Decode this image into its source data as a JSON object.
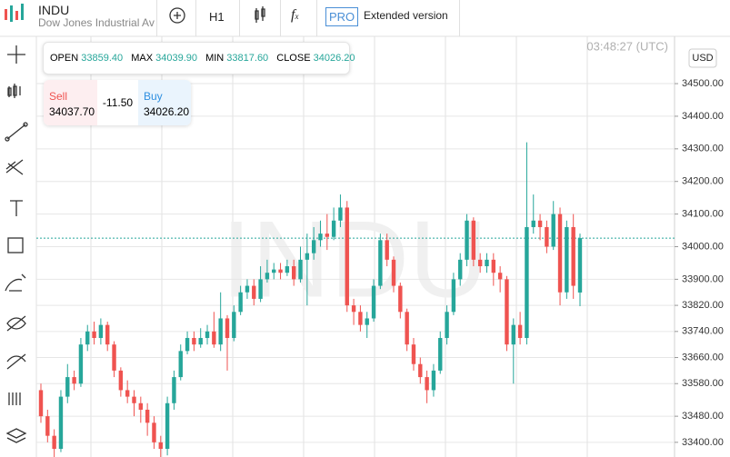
{
  "header": {
    "symbol": "INDU",
    "name": "Dow Jones Industrial Ave",
    "interval": "H1",
    "pro": "PRO",
    "extended": "Extended version"
  },
  "ohlc": {
    "open_label": "OPEN",
    "open": "33859.40",
    "max_label": "MAX",
    "max": "34039.90",
    "min_label": "MIN",
    "min": "33817.60",
    "close_label": "CLOSE",
    "close": "34026.20"
  },
  "trade": {
    "sell_label": "Sell",
    "sell": "34037.70",
    "spread": "-11.50",
    "buy_label": "Buy",
    "buy": "34026.20"
  },
  "time": "03:48:27 (UTC)",
  "currency": "USD",
  "watermark": "INDU",
  "chart_data": {
    "type": "candlestick",
    "up_color": "#26a69a",
    "down_color": "#ef5350",
    "last_price": 34026.2,
    "last_price_color": "#26a69a",
    "grid": true,
    "ylim": [
      33355,
      34645
    ],
    "yticks": [
      {
        "value": 33400,
        "label": "33400.00"
      },
      {
        "value": 33480,
        "label": "33480.00"
      },
      {
        "value": 33580,
        "label": "33580.00"
      },
      {
        "value": 33660,
        "label": "33660.00"
      },
      {
        "value": 33740,
        "label": "33740.00"
      },
      {
        "value": 33820,
        "label": "33820.00"
      },
      {
        "value": 33900,
        "label": "33900.00"
      },
      {
        "value": 34000,
        "label": "34000.00"
      },
      {
        "value": 34100,
        "label": "34100.00"
      },
      {
        "value": 34200,
        "label": "34200.00"
      },
      {
        "value": 34300,
        "label": "34300.00"
      },
      {
        "value": 34400,
        "label": "34400.00"
      },
      {
        "value": 34500,
        "label": "34500.00"
      }
    ],
    "open": [
      33560,
      33480,
      33420,
      33380,
      33540,
      33600,
      33580,
      33700,
      33740,
      33720,
      33760,
      33700,
      33620,
      33560,
      33540,
      33520,
      33500,
      33460,
      33400,
      33380,
      33520,
      33600,
      33680,
      33720,
      33700,
      33720,
      33740,
      33700,
      33780,
      33720,
      33800,
      33860,
      33880,
      33840,
      33900,
      33920,
      33930,
      33920,
      33940,
      33900,
      33960,
      33980,
      34020,
      34040,
      34030,
      34080,
      34120,
      33820,
      33800,
      33760,
      33780,
      33880,
      34020,
      33960,
      33880,
      33800,
      33700,
      33640,
      33600,
      33560,
      33620,
      33720,
      33800,
      33900,
      33960,
      34080,
      33960,
      33940,
      33960,
      33920,
      33900,
      33700,
      33760,
      33720,
      34060,
      34080,
      34060,
      34000,
      34100,
      33860,
      34060,
      33859.4
    ],
    "high": [
      33580,
      33500,
      33440,
      33560,
      33640,
      33620,
      33720,
      33760,
      33770,
      33780,
      33770,
      33710,
      33630,
      33590,
      33560,
      33540,
      33520,
      33480,
      33420,
      33540,
      33620,
      33700,
      33740,
      33740,
      33750,
      33760,
      33800,
      33860,
      33790,
      33820,
      33880,
      33900,
      33900,
      33940,
      33960,
      33950,
      33950,
      33960,
      33960,
      34000,
      34040,
      34060,
      34080,
      34100,
      34120,
      34160,
      34140,
      33840,
      33820,
      33800,
      33900,
      34040,
      34040,
      33970,
      33890,
      33810,
      33720,
      33660,
      33620,
      33640,
      33740,
      33820,
      33920,
      33980,
      34100,
      34090,
      33980,
      33980,
      33980,
      33940,
      33910,
      33780,
      33800,
      34320,
      34160,
      34100,
      34080,
      34140,
      34120,
      34080,
      34100,
      34039.9
    ],
    "low": [
      33460,
      33400,
      33340,
      33370,
      33520,
      33560,
      33570,
      33680,
      33700,
      33700,
      33680,
      33600,
      33540,
      33520,
      33480,
      33460,
      33420,
      33380,
      33330,
      33360,
      33500,
      33590,
      33670,
      33680,
      33690,
      33700,
      33690,
      33680,
      33620,
      33710,
      33790,
      33840,
      33820,
      33830,
      33890,
      33900,
      33900,
      33910,
      33880,
      33890,
      33820,
      33960,
      34000,
      33990,
      34020,
      34060,
      33800,
      33760,
      33740,
      33720,
      33770,
      33870,
      33940,
      33860,
      33780,
      33680,
      33620,
      33580,
      33520,
      33540,
      33610,
      33700,
      33790,
      33880,
      33940,
      33940,
      33920,
      33920,
      33880,
      33860,
      33680,
      33580,
      33700,
      33700,
      34040,
      34020,
      33980,
      33990,
      33820,
      33840,
      33840,
      33817.6
    ],
    "close": [
      33480,
      33420,
      33380,
      33540,
      33600,
      33580,
      33700,
      33740,
      33720,
      33760,
      33700,
      33620,
      33560,
      33540,
      33520,
      33500,
      33460,
      33400,
      33380,
      33520,
      33600,
      33680,
      33720,
      33700,
      33720,
      33740,
      33700,
      33780,
      33720,
      33800,
      33860,
      33880,
      33840,
      33900,
      33920,
      33930,
      33920,
      33940,
      33900,
      33960,
      33980,
      34020,
      34040,
      34030,
      34080,
      34120,
      33820,
      33800,
      33760,
      33780,
      33880,
      34020,
      33960,
      33880,
      33800,
      33700,
      33640,
      33600,
      33560,
      33620,
      33720,
      33800,
      33900,
      33960,
      34080,
      33960,
      33940,
      33960,
      33920,
      33900,
      33700,
      33760,
      33720,
      34060,
      34080,
      34060,
      34000,
      34100,
      33860,
      34060,
      33880,
      34026.2
    ]
  }
}
